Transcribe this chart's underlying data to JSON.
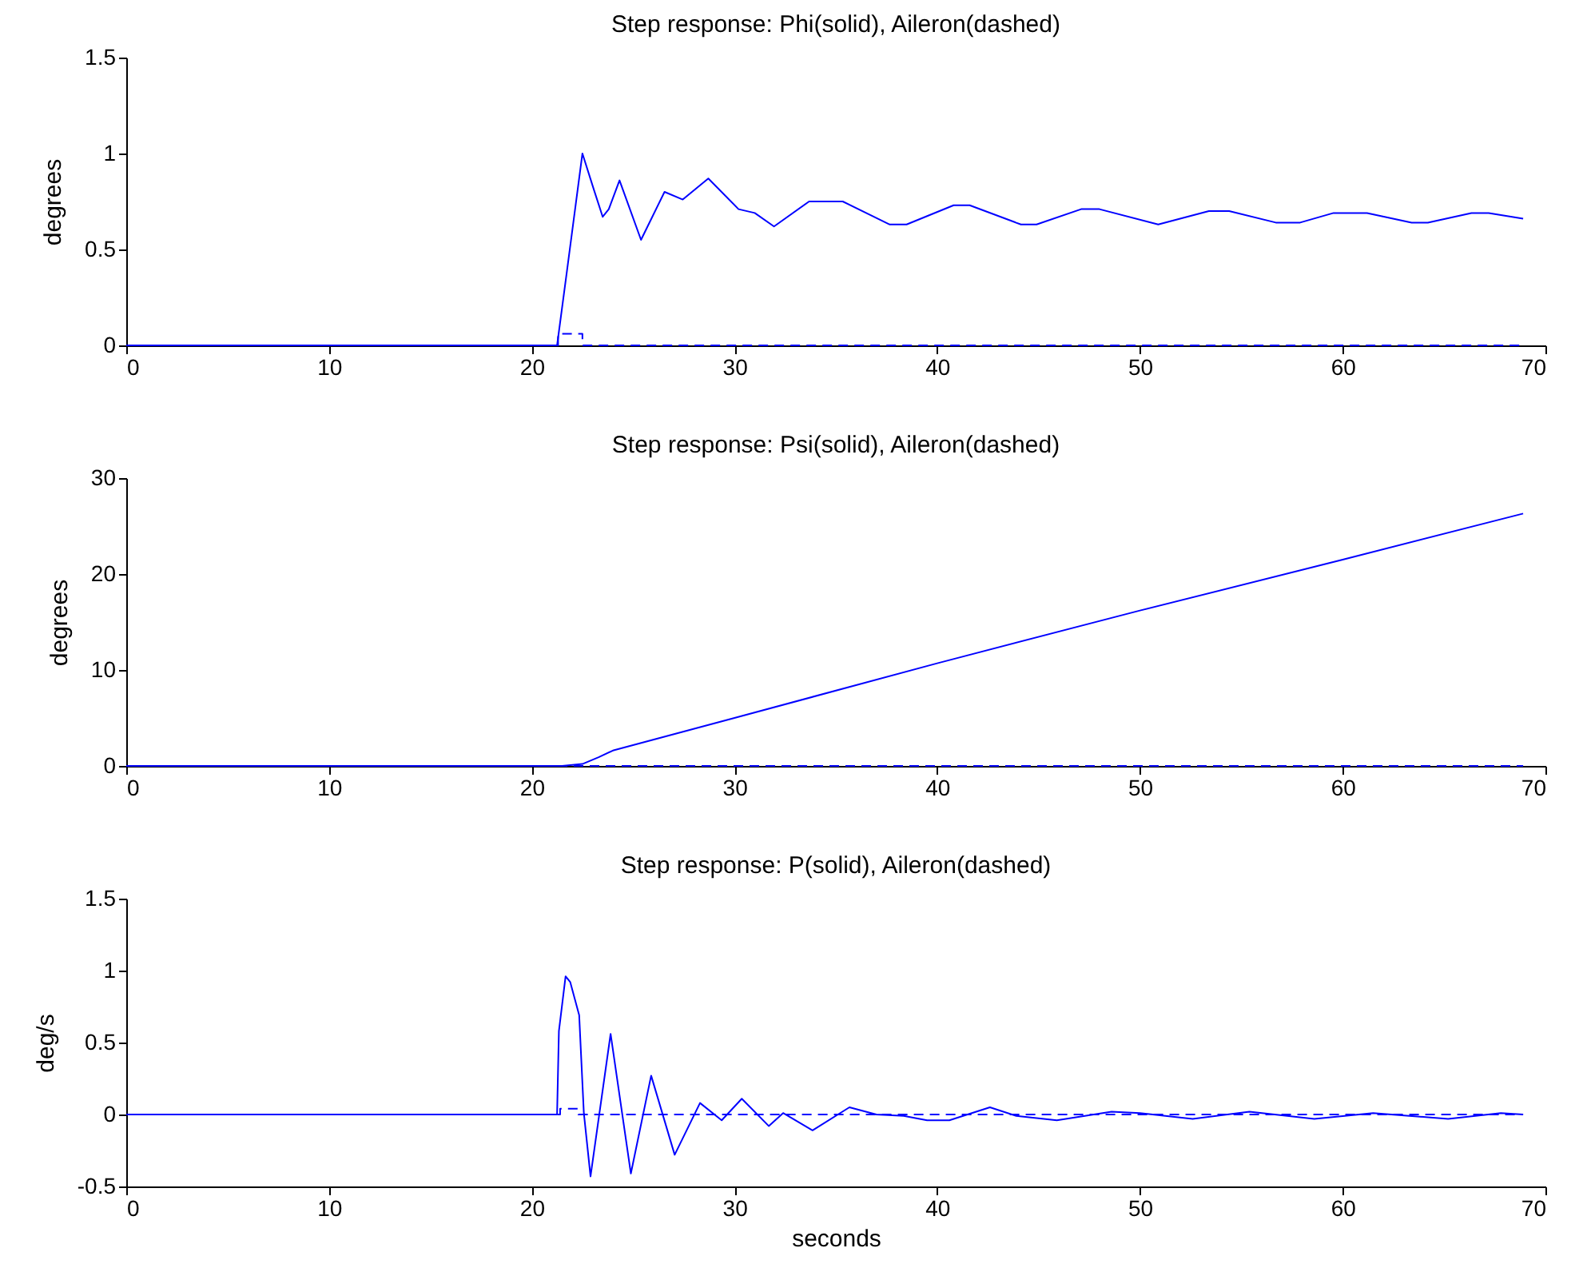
{
  "chart_data": [
    {
      "type": "line",
      "title": "Step response: Phi(solid), Aileron(dashed)",
      "ylabel": "degrees",
      "xlim": [
        0,
        70
      ],
      "xticks": [
        0,
        10,
        20,
        30,
        40,
        50,
        60,
        70
      ],
      "ylim": [
        0,
        1.5
      ],
      "yticks": [
        0,
        0.5,
        1,
        1.5
      ],
      "series": [
        {
          "color": "#0000ff",
          "line_style": "solid",
          "x": [
            0,
            21.25,
            21.74,
            22.5,
            23.07,
            23.5,
            23.8,
            24.33,
            25.39,
            26.55,
            27.45,
            28.71,
            30.2,
            31.0,
            31.95,
            33.68,
            35.34,
            37.66,
            38.49,
            40.81,
            41.6,
            44.13,
            44.9,
            47.1,
            48.0,
            50.9,
            53.4,
            54.4,
            56.7,
            57.9,
            59.55,
            61.2,
            63.4,
            64.2,
            66.35,
            67.2,
            68.9
          ],
          "values": [
            0,
            0,
            0.39,
            1.0,
            0.81,
            0.67,
            0.71,
            0.86,
            0.55,
            0.8,
            0.76,
            0.87,
            0.71,
            0.69,
            0.62,
            0.75,
            0.75,
            0.63,
            0.63,
            0.73,
            0.73,
            0.63,
            0.63,
            0.71,
            0.71,
            0.63,
            0.7,
            0.7,
            0.64,
            0.64,
            0.69,
            0.69,
            0.64,
            0.64,
            0.69,
            0.69,
            0.66
          ]
        },
        {
          "color": "#0000ff",
          "line_style": "dashed",
          "x": [
            0,
            21.3,
            21.3,
            22.5,
            22.5,
            68.9
          ],
          "values": [
            0,
            0,
            0.06,
            0.06,
            0,
            0
          ]
        }
      ]
    },
    {
      "type": "line",
      "title": "Step response: Psi(solid), Aileron(dashed)",
      "ylabel": "degrees",
      "xlim": [
        0,
        70
      ],
      "xticks": [
        0,
        10,
        20,
        30,
        40,
        50,
        60,
        70
      ],
      "ylim": [
        0,
        30
      ],
      "yticks": [
        0,
        10,
        20,
        30
      ],
      "series": [
        {
          "color": "#0000ff",
          "line_style": "solid",
          "x": [
            0,
            21.5,
            22.5,
            23.3,
            24,
            30,
            40,
            50,
            60,
            68.9
          ],
          "values": [
            0,
            0,
            0.2,
            0.9,
            1.6,
            5.0,
            10.7,
            16.2,
            21.5,
            26.3
          ]
        },
        {
          "color": "#0000ff",
          "line_style": "dashed",
          "x": [
            0,
            68.9
          ],
          "values": [
            0,
            0
          ]
        }
      ]
    },
    {
      "type": "line",
      "title": "Step response: P(solid), Aileron(dashed)",
      "xlabel": "seconds",
      "ylabel": "deg/s",
      "xlim": [
        0,
        70
      ],
      "xticks": [
        0,
        10,
        20,
        30,
        40,
        50,
        60,
        70
      ],
      "ylim": [
        -0.5,
        1.5
      ],
      "yticks": [
        -0.5,
        0,
        0.5,
        1,
        1.5
      ],
      "series": [
        {
          "color": "#0000ff",
          "line_style": "solid",
          "x": [
            0,
            21.25,
            21.34,
            21.67,
            21.9,
            22.34,
            22.57,
            22.9,
            23.89,
            24.89,
            25.89,
            27.05,
            28.3,
            29.37,
            30.36,
            31.69,
            32.4,
            33.85,
            35.67,
            37.0,
            38.35,
            39.5,
            40.6,
            42.6,
            43.9,
            45.9,
            48.6,
            50.0,
            52.6,
            55.4,
            58.6,
            61.5,
            65.2,
            67.8,
            68.9
          ],
          "values": [
            0,
            0,
            0.58,
            0.96,
            0.92,
            0.69,
            0.01,
            -0.43,
            0.56,
            -0.41,
            0.27,
            -0.28,
            0.08,
            -0.04,
            0.11,
            -0.08,
            0.01,
            -0.11,
            0.05,
            0,
            -0.01,
            -0.04,
            -0.04,
            0.05,
            -0.01,
            -0.04,
            0.02,
            0.01,
            -0.03,
            0.02,
            -0.03,
            0.01,
            -0.03,
            0.01,
            0
          ]
        },
        {
          "color": "#0000ff",
          "line_style": "dashed",
          "x": [
            0,
            21.4,
            21.4,
            22.3,
            22.3,
            68.9
          ],
          "values": [
            0,
            0,
            0.04,
            0.04,
            0,
            0
          ]
        }
      ]
    }
  ]
}
